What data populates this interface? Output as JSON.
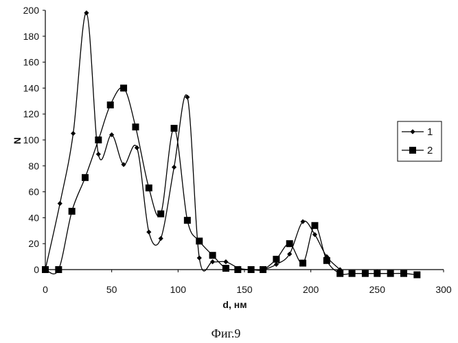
{
  "chart_data": {
    "type": "line",
    "xlabel": "d, нм",
    "ylabel": "N",
    "xlim": [
      0,
      300
    ],
    "ylim": [
      0,
      200
    ],
    "x_ticks": [
      0,
      50,
      100,
      150,
      200,
      250,
      300
    ],
    "y_ticks": [
      0,
      20,
      40,
      60,
      80,
      100,
      120,
      140,
      160,
      180,
      200
    ],
    "grid": false,
    "legend_position": "right",
    "series": [
      {
        "name": "1",
        "marker": "diamond",
        "color": "#000000",
        "x": [
          0,
          11,
          21,
          31,
          40,
          50,
          59,
          69,
          78,
          87,
          97,
          107,
          116,
          126,
          136,
          146,
          155,
          164,
          174,
          184,
          194,
          203,
          212,
          222
        ],
        "y": [
          0,
          51,
          105,
          198,
          89,
          104,
          81,
          94,
          29,
          24,
          79,
          133,
          9,
          6,
          6,
          1,
          0,
          0,
          4,
          12,
          37,
          27,
          10,
          0
        ]
      },
      {
        "name": "2",
        "marker": "square",
        "color": "#000000",
        "x": [
          0,
          10,
          20,
          30,
          40,
          49,
          59,
          68,
          78,
          87,
          97,
          107,
          116,
          126,
          136,
          145,
          155,
          164,
          174,
          184,
          194,
          203,
          212,
          222,
          231,
          241,
          250,
          260,
          270,
          280
        ],
        "y": [
          0,
          0,
          45,
          71,
          100,
          127,
          140,
          110,
          63,
          43,
          109,
          38,
          22,
          11,
          1,
          0,
          0,
          0,
          8,
          20,
          5,
          34,
          7,
          -3,
          -3,
          -3,
          -3,
          -3,
          -3,
          -4
        ]
      }
    ]
  },
  "caption": "Фиг.9"
}
